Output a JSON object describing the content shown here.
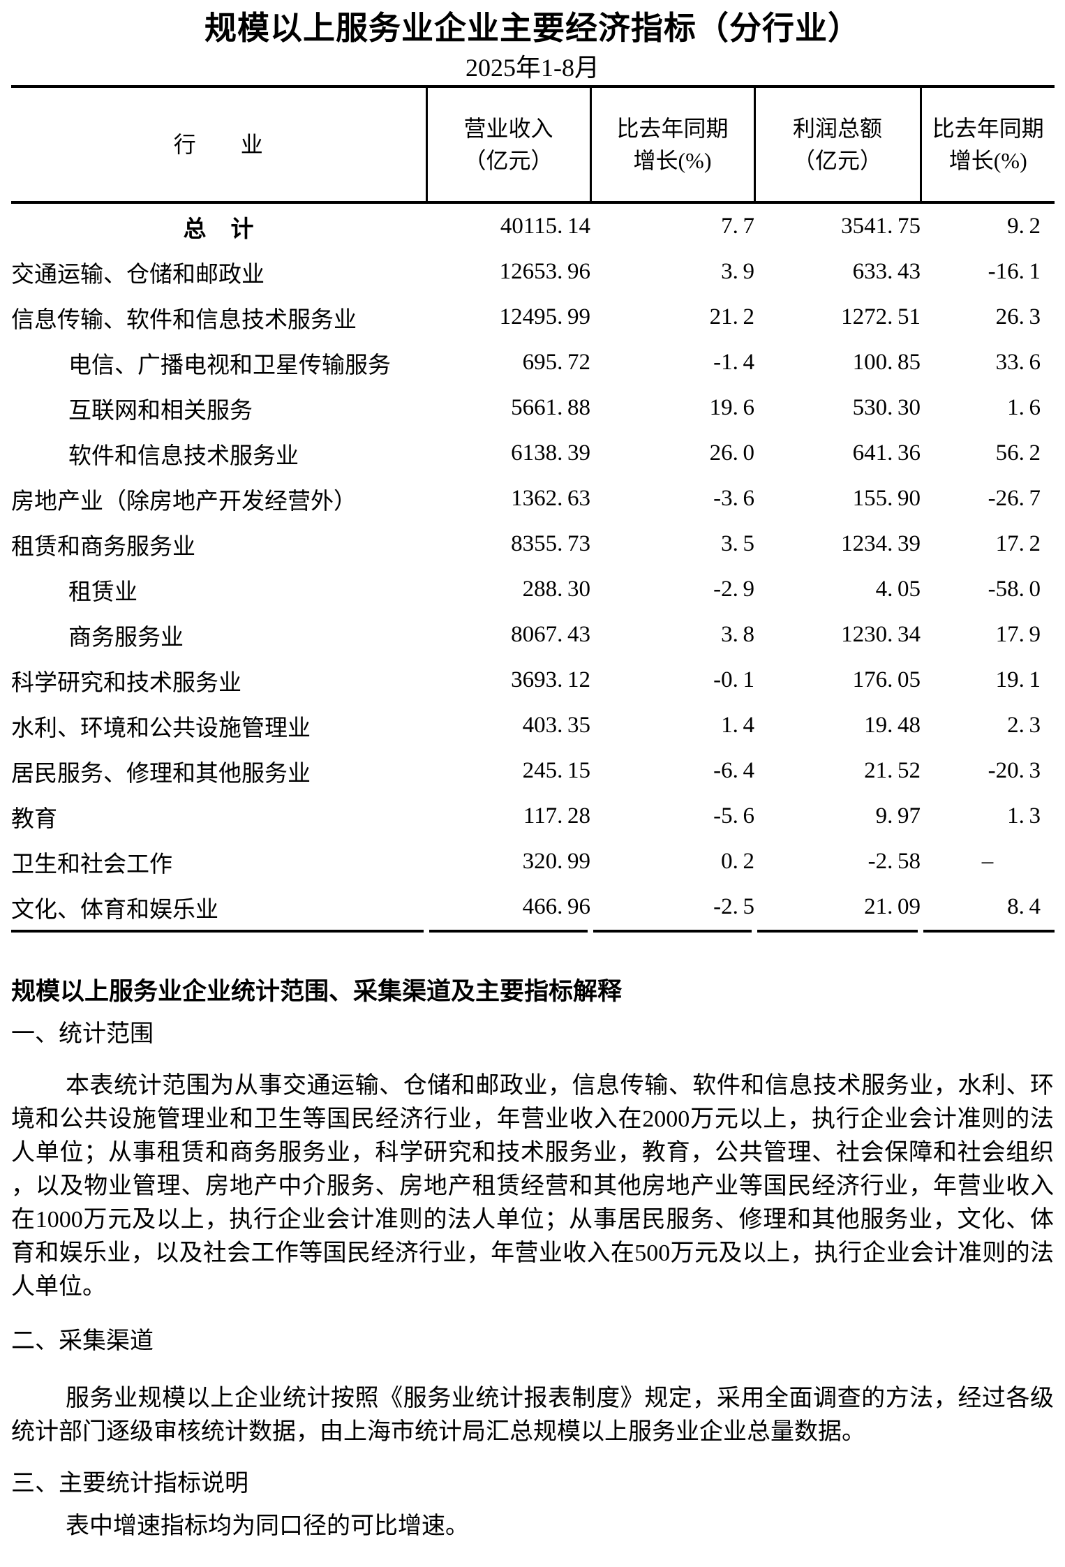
{
  "page": {
    "title": "规模以上服务业企业主要经济指标（分行业）",
    "subtitle": "2025年1-8月"
  },
  "table": {
    "columns": [
      "行　　业",
      "营业收入\n（亿元）",
      "比去年同期\n增长(%)",
      "利润总额\n（亿元）",
      "比去年同期\n增长(%)"
    ],
    "rows": [
      {
        "label": "总　计",
        "level": "total",
        "values": [
          "40115.14",
          "7.7",
          "3541.75",
          "9.2"
        ]
      },
      {
        "label": "交通运输、仓储和邮政业",
        "level": "l1",
        "values": [
          "12653.96",
          "3.9",
          "633.43",
          "-16.1"
        ]
      },
      {
        "label": "信息传输、软件和信息技术服务业",
        "level": "l1",
        "values": [
          "12495.99",
          "21.2",
          "1272.51",
          "26.3"
        ]
      },
      {
        "label": "电信、广播电视和卫星传输服务",
        "level": "l2",
        "values": [
          "695.72",
          "-1.4",
          "100.85",
          "33.6"
        ]
      },
      {
        "label": "互联网和相关服务",
        "level": "l2",
        "values": [
          "5661.88",
          "19.6",
          "530.30",
          "1.6"
        ]
      },
      {
        "label": "软件和信息技术服务业",
        "level": "l2",
        "values": [
          "6138.39",
          "26.0",
          "641.36",
          "56.2"
        ]
      },
      {
        "label": "房地产业（除房地产开发经营外）",
        "level": "l1",
        "values": [
          "1362.63",
          "-3.6",
          "155.90",
          "-26.7"
        ]
      },
      {
        "label": "租赁和商务服务业",
        "level": "l1",
        "values": [
          "8355.73",
          "3.5",
          "1234.39",
          "17.2"
        ]
      },
      {
        "label": "租赁业",
        "level": "l2",
        "values": [
          "288.30",
          "-2.9",
          "4.05",
          "-58.0"
        ]
      },
      {
        "label": "商务服务业",
        "level": "l2",
        "values": [
          "8067.43",
          "3.8",
          "1230.34",
          "17.9"
        ]
      },
      {
        "label": "科学研究和技术服务业",
        "level": "l1",
        "values": [
          "3693.12",
          "-0.1",
          "176.05",
          "19.1"
        ]
      },
      {
        "label": "水利、环境和公共设施管理业",
        "level": "l1",
        "values": [
          "403.35",
          "1.4",
          "19.48",
          "2.3"
        ]
      },
      {
        "label": "居民服务、修理和其他服务业",
        "level": "l1",
        "values": [
          "245.15",
          "-6.4",
          "21.52",
          "-20.3"
        ]
      },
      {
        "label": "教育",
        "level": "l1",
        "values": [
          "117.28",
          "-5.6",
          "9.97",
          "1.3"
        ]
      },
      {
        "label": "卫生和社会工作",
        "level": "l1",
        "values": [
          "320.99",
          "0.2",
          "-2.58",
          "–"
        ]
      },
      {
        "label": "文化、体育和娱乐业",
        "level": "l1",
        "values": [
          "466.96",
          "-2.5",
          "21.09",
          "8.4"
        ]
      }
    ]
  },
  "notes": {
    "heading": "规模以上服务业企业统计范围、采集渠道及主要指标解释",
    "sections": [
      {
        "title": "一、统计范围",
        "paragraphs": [
          "本表统计范围为从事交通运输、仓储和邮政业，信息传输、软件和信息技术服务业，水利、环境和公共设施管理业和卫生等国民经济行业，年营业收入在2000万元以上，执行企业会计准则的法人单位；从事租赁和商务服务业，科学研究和技术服务业，教育，公共管理、社会保障和社会组织，以及物业管理、房地产中介服务、房地产租赁经营和其他房地产业等国民经济行业，年营业收入在1000万元及以上，执行企业会计准则的法人单位；从事居民服务、修理和其他服务业，文化、体育和娱乐业，以及社会工作等国民经济行业，年营业收入在500万元及以上，执行企业会计准则的法人单位。"
        ]
      },
      {
        "title": "二、采集渠道",
        "paragraphs": [
          "服务业规模以上企业统计按照《服务业统计报表制度》规定，采用全面调查的方法，经过各级统计部门逐级审核统计数据，由上海市统计局汇总规模以上服务业企业总量数据。"
        ]
      },
      {
        "title": "三、主要统计指标说明",
        "paragraphs": [
          "表中增速指标均为同口径的可比增速。"
        ]
      }
    ]
  }
}
